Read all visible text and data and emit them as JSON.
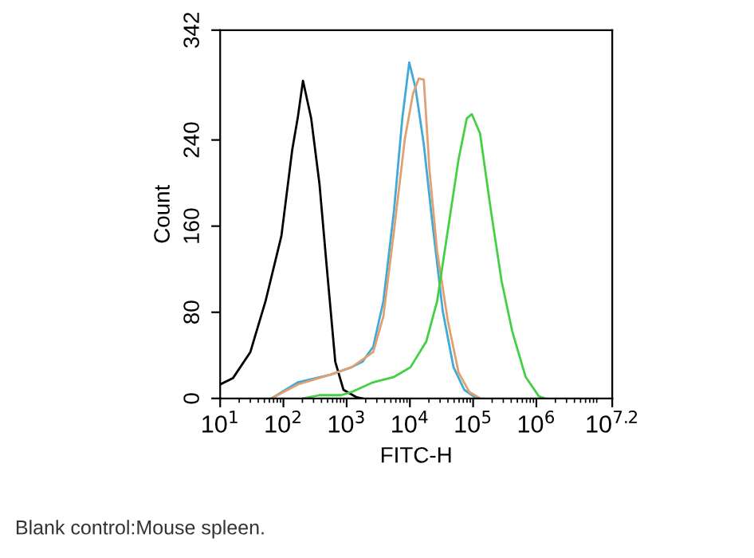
{
  "chart_data": {
    "type": "line",
    "xlabel": "FITC-H",
    "ylabel": "Count",
    "log": "x",
    "xlim": [
      10,
      15848932
    ],
    "xticks": [
      {
        "value": 10,
        "label": "10$^{1}$"
      },
      {
        "value": 100,
        "label": "10$^{2}$"
      },
      {
        "value": 1000,
        "label": "10$^{3}$"
      },
      {
        "value": 10000,
        "label": "10$^{4}$"
      },
      {
        "value": 100000,
        "label": "10$^{5}$"
      },
      {
        "value": 1000000,
        "label": "10$^{6}$"
      },
      {
        "value": 15848932,
        "label": "10$^{7.2}$"
      }
    ],
    "ylim": [
      0,
      342
    ],
    "yticks": [
      0,
      80,
      160,
      240,
      342
    ],
    "grid": false,
    "marker": "none",
    "line_style": "solid",
    "series": [
      {
        "color": "#000000",
        "x": [
          10,
          16,
          30,
          52,
          93,
          138,
          170,
          204,
          275,
          372,
          490,
          661,
          891,
          1445,
          1778
        ],
        "values": [
          13,
          19,
          43,
          90,
          151,
          231,
          262,
          295,
          260,
          199,
          119,
          34,
          8,
          1,
          0
        ]
      },
      {
        "color": "#3fa9d8",
        "x": [
          65,
          170,
          550,
          1202,
          1778,
          2630,
          3802,
          5623,
          7586,
          9772,
          12300,
          16600,
          22390,
          33110,
          48980,
          72440,
          107200
        ],
        "values": [
          0,
          15,
          22,
          29,
          34,
          48,
          90,
          175,
          260,
          312,
          288,
          236,
          166,
          81,
          29,
          8,
          1
        ]
      },
      {
        "color": "#e0a070",
        "x": [
          65,
          170,
          550,
          1202,
          2630,
          3802,
          5623,
          8318,
          11220,
          13800,
          16600,
          20420,
          26920,
          39810,
          58880,
          87100,
          128800
        ],
        "values": [
          0,
          13,
          22,
          29,
          43,
          76,
          156,
          241,
          283,
          297,
          296,
          212,
          137,
          72,
          24,
          6,
          0
        ]
      },
      {
        "color": "#44d044",
        "x": [
          204,
          372,
          813,
          1202,
          2630,
          5623,
          10230,
          18200,
          26920,
          39810,
          58880,
          79430,
          95500,
          128800,
          190500,
          281800,
          416900,
          676100,
          1096000,
          1349000
        ],
        "values": [
          0,
          3,
          3,
          6,
          15,
          20,
          29,
          53,
          90,
          156,
          222,
          260,
          264,
          246,
          175,
          109,
          62,
          20,
          2,
          0
        ]
      }
    ],
    "annotations": [
      "Blank control:Mouse spleen."
    ]
  }
}
